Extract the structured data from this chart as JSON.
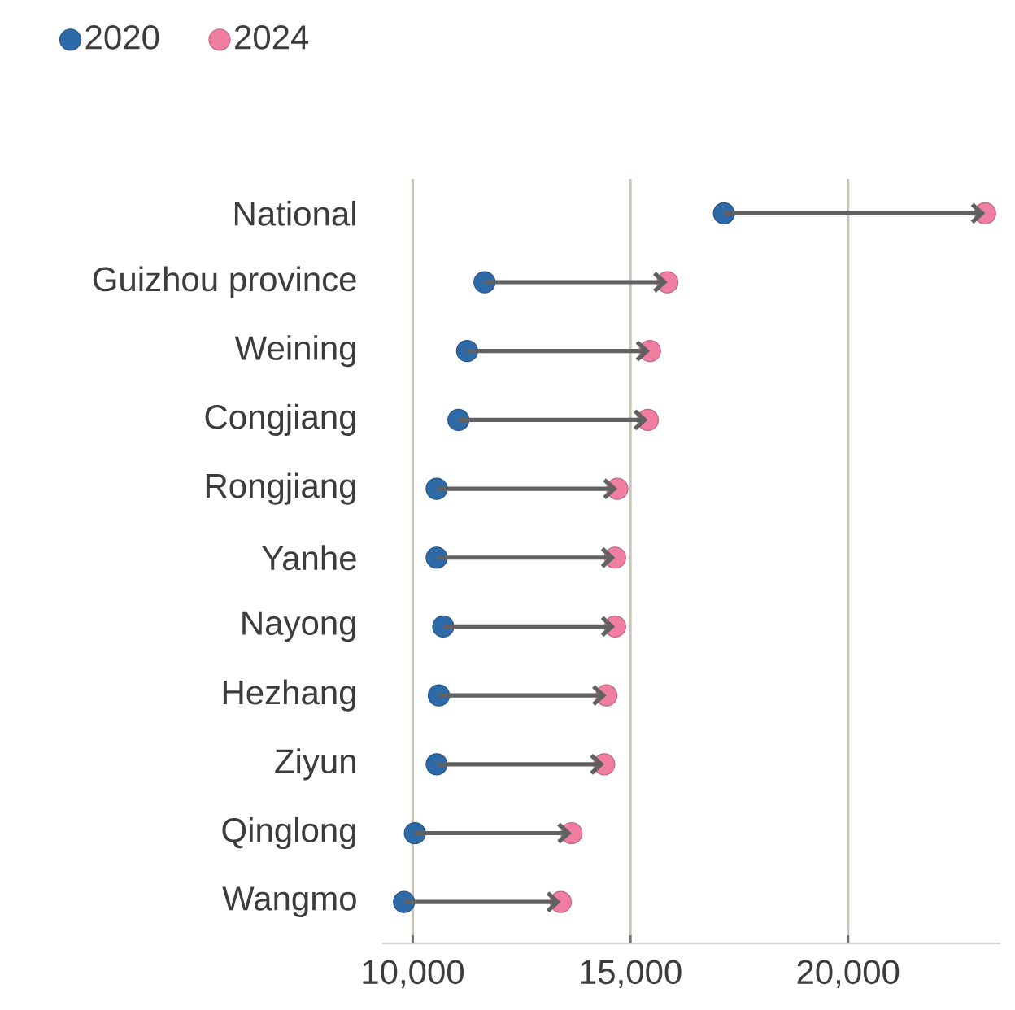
{
  "chart_data": {
    "type": "scatter",
    "orientation": "horizontal",
    "marker": "circle",
    "grid": "x",
    "legend": "top left",
    "categories": [
      "National",
      "Guizhou province",
      "Weining",
      "Congjiang",
      "Rongjiang",
      "Yanhe",
      "Nayong",
      "Hezhang",
      "Ziyun",
      "Qinglong",
      "Wangmo"
    ],
    "series": [
      {
        "name": "2020",
        "color": "#2f6aa8",
        "values": [
          17150,
          11650,
          11250,
          11050,
          10550,
          10550,
          10700,
          10600,
          10550,
          10050,
          9800
        ]
      },
      {
        "name": "2024",
        "color": "#f07ea0",
        "values": [
          23150,
          15850,
          15450,
          15400,
          14700,
          14650,
          14650,
          14450,
          14400,
          13650,
          13400
        ]
      }
    ],
    "xlim": [
      9300,
      23500
    ],
    "xticks": [
      {
        "value": 10000,
        "label": "10,000"
      },
      {
        "value": 15000,
        "label": "15,000"
      },
      {
        "value": 20000,
        "label": "20,000"
      }
    ]
  }
}
